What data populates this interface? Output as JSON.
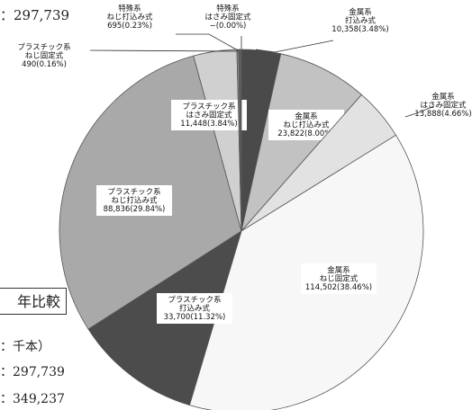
{
  "fragments": {
    "total_top": "：297,739",
    "comparison_box": "年比較",
    "unit": "：千本）",
    "value_1": "：297,739",
    "value_2": "：349,237"
  },
  "chart_data": {
    "type": "pie",
    "slices": [
      {
        "line1": "特殊系",
        "line2": "はさみ固定式",
        "value_label": "−(0.00%)",
        "value": 0,
        "color": "#7a7a7a"
      },
      {
        "line1": "金属系",
        "line2": "打込み式",
        "value_label": "10,358(3.48%)",
        "value": 10358,
        "color": "#4a4a4a"
      },
      {
        "line1": "金属系",
        "line2": "ねじ打込み式",
        "value_label": "23,822(8.00%)",
        "value": 23822,
        "color": "#c2c2c2"
      },
      {
        "line1": "金属系",
        "line2": "はさみ固定式",
        "value_label": "13,888(4.66%)",
        "value": 13888,
        "color": "#e2e2e2"
      },
      {
        "line1": "金属系",
        "line2": "ねじ固定式",
        "value_label": "114,502(38.46%)",
        "value": 114502,
        "color": "#f7f7f7"
      },
      {
        "line1": "プラスチック系",
        "line2": "打込み式",
        "value_label": "33,700(11.32%)",
        "value": 33700,
        "color": "#4c4c4c"
      },
      {
        "line1": "プラスチック系",
        "line2": "ねじ打込み式",
        "value_label": "88,836(29.84%)",
        "value": 88836,
        "color": "#a9a9a9"
      },
      {
        "line1": "プラスチック系",
        "line2": "はさみ固定式",
        "value_label": "11,448(3.84%)",
        "value": 11448,
        "color": "#d0d0d0"
      },
      {
        "line1": "プラスチック系",
        "line2": "ねじ固定式",
        "value_label": "490(0.16%)",
        "value": 490,
        "color": "#909090"
      },
      {
        "line1": "特殊系",
        "line2": "ねじ打込み式",
        "value_label": "695(0.23%)",
        "value": 695,
        "color": "#5f5f5f"
      }
    ]
  }
}
